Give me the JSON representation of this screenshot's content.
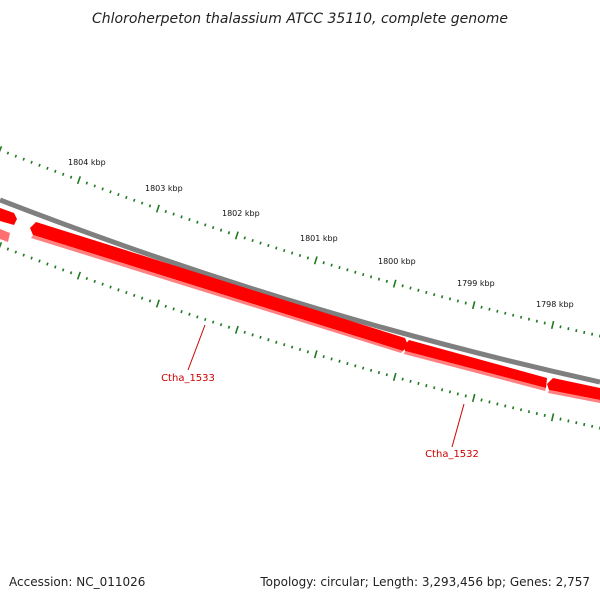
{
  "title": "Chloroherpeton thalassium ATCC 35110, complete genome",
  "footer": {
    "accession": "Accession: NC_011026",
    "summary": "Topology: circular; Length: 3,293,456 bp; Genes: 2,757"
  },
  "ruler": {
    "labels": [
      "1804 kbp",
      "1803 kbp",
      "1802 kbp",
      "1801 kbp",
      "1800 kbp",
      "1799 kbp",
      "1798 kbp"
    ]
  },
  "genes": [
    {
      "name": "Ctha_1533"
    },
    {
      "name": "Ctha_1532"
    }
  ],
  "colors": {
    "backbone": "#7f7f7f",
    "gene": "#ff0000",
    "gene_shadow": "#ff7070",
    "ticks": "#1f7a1f",
    "gene_label": "#cc0000"
  }
}
